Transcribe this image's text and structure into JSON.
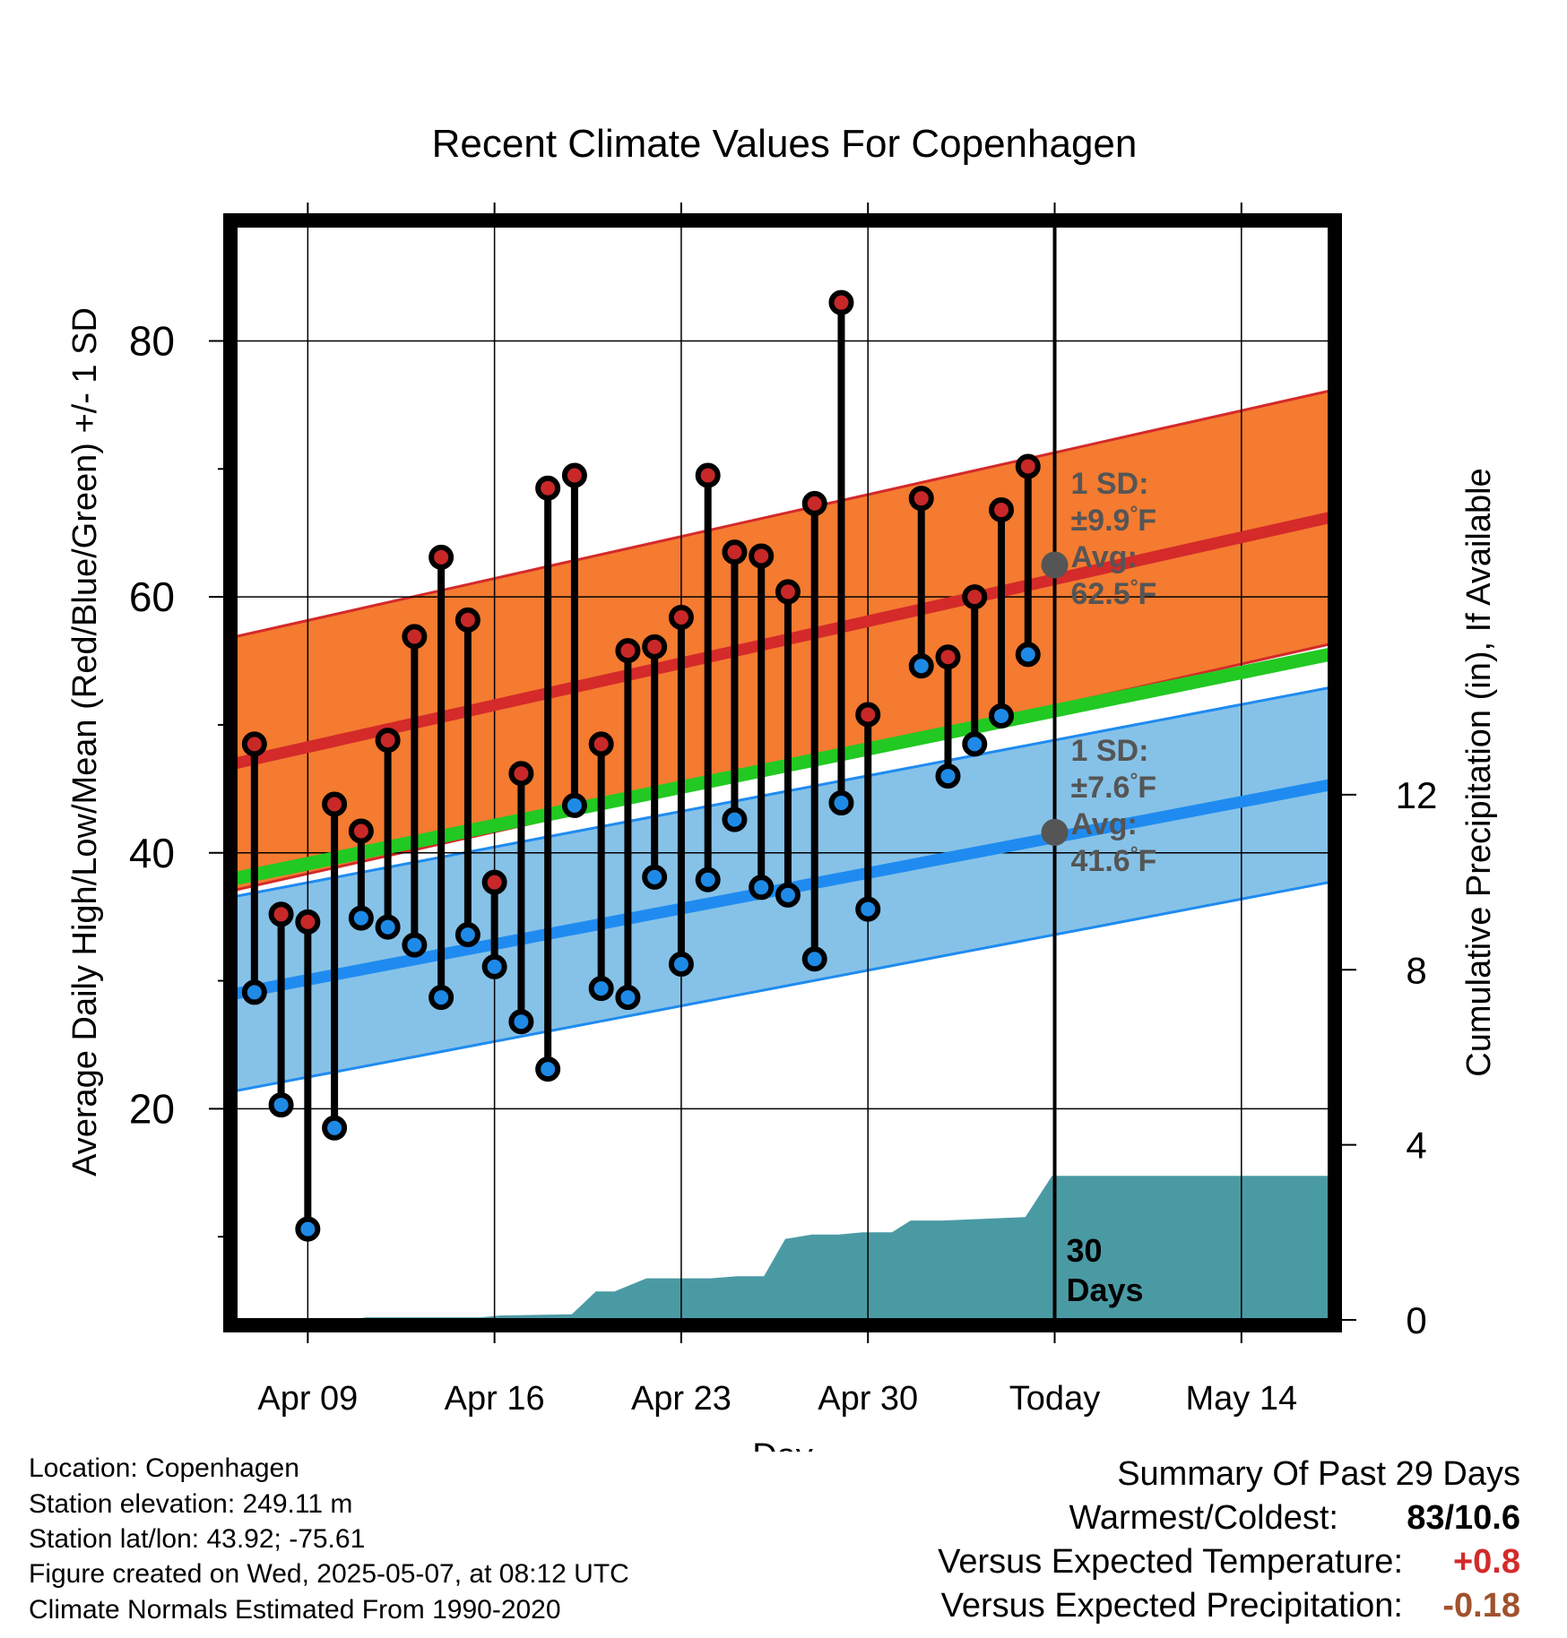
{
  "chart_data": {
    "type": "line",
    "title": "Recent Climate Values For Copenhagen",
    "xlabel": "Day",
    "ylabel_left": "Average Daily High/Low/Mean (Red/Blue/Green) +/- 1 SD",
    "ylabel_right": "Cumulative Precipitation (in), If Available",
    "x_tick_labels": [
      "Apr 09",
      "Apr 16",
      "Apr 23",
      "Apr 30",
      "Today",
      "May 14"
    ],
    "x_tick_days": [
      2,
      9,
      16,
      23,
      30,
      37
    ],
    "xlim_days": [
      -0.7,
      40.3
    ],
    "today_day": 30,
    "ylim_left": [
      3.5,
      89
    ],
    "yticks_left": [
      20,
      40,
      60,
      80
    ],
    "yminor_left": [
      10,
      30,
      50,
      70
    ],
    "ylim_right": [
      0,
      25
    ],
    "yticks_right": [
      0,
      4,
      8,
      12
    ],
    "x_days": [
      0,
      1,
      2,
      3,
      4,
      5,
      6,
      7,
      8,
      9,
      10,
      11,
      12,
      13,
      14,
      15,
      16,
      17,
      18,
      19,
      20,
      21,
      22,
      23,
      24,
      25,
      26,
      27,
      28,
      29
    ],
    "highs": [
      48.5,
      35.2,
      34.6,
      43.8,
      41.7,
      48.8,
      56.9,
      63.1,
      58.2,
      37.7,
      46.2,
      68.5,
      69.5,
      48.5,
      55.8,
      56.1,
      58.4,
      69.5,
      63.5,
      63.2,
      60.4,
      67.3,
      83.0,
      50.8,
      null,
      67.7,
      55.3,
      60.0,
      66.8,
      70.2
    ],
    "lows": [
      29.1,
      20.3,
      10.6,
      18.5,
      34.9,
      34.2,
      32.8,
      28.7,
      33.6,
      31.1,
      26.8,
      23.1,
      43.7,
      29.4,
      28.7,
      38.1,
      31.3,
      37.9,
      42.6,
      37.3,
      36.7,
      31.7,
      43.9,
      35.6,
      null,
      54.6,
      46.0,
      48.5,
      50.7,
      55.5
    ],
    "normal_high": {
      "x": [
        -0.7,
        40.3
      ],
      "values": [
        47.0,
        66.2
      ]
    },
    "normal_low": {
      "x": [
        -0.7,
        40.3
      ],
      "values": [
        29.0,
        45.3
      ]
    },
    "normal_mean": {
      "x": [
        -0.7,
        40.3
      ],
      "values": [
        38.0,
        55.5
      ]
    },
    "sd_high": 9.9,
    "sd_low": 7.6,
    "precip_cumulative": {
      "x": [
        -0.7,
        3.5,
        4.2,
        8.5,
        9.2,
        11.9,
        12.8,
        13.5,
        14.7,
        17.1,
        18.1,
        19.1,
        19.9,
        20.9,
        21.9,
        22.8,
        23.9,
        24.6,
        25.8,
        26.9,
        28.9,
        29.9,
        40.3
      ],
      "values": [
        0,
        0,
        0.06,
        0.06,
        0.1,
        0.13,
        0.65,
        0.65,
        0.95,
        0.95,
        1.0,
        1.0,
        1.85,
        1.95,
        1.95,
        2.0,
        2.0,
        2.27,
        2.27,
        2.3,
        2.35,
        3.29,
        3.29
      ]
    },
    "annotations": {
      "high_sd": [
        "1 SD:",
        "±9.9°F",
        "Avg:",
        "62.5°F"
      ],
      "low_sd": [
        "1 SD:",
        "±7.6°F",
        "Avg:",
        "41.6°F"
      ],
      "high_avg_value": 62.5,
      "low_avg_value": 41.6,
      "days_label": [
        "30",
        "Days"
      ]
    },
    "colors": {
      "high_band": "#f47b30",
      "high_line": "#d42a2a",
      "low_band": "#86c2e8",
      "low_line": "#1f8bf0",
      "mean_line": "#22c922",
      "precip": "#4a9aa4",
      "high_dot": "#c82828",
      "low_dot": "#1e8ae6",
      "annotation": "#555555"
    }
  },
  "info": {
    "location": "Location: Copenhagen",
    "elevation": "Station elevation: 249.11 m",
    "latlon": "Station lat/lon: 43.92; -75.61",
    "created": "Figure created on Wed, 2025-05-07, at 08:12 UTC",
    "normals": "Climate Normals Estimated From 1990-2020"
  },
  "summary": {
    "title": "Summary Of Past 29 Days",
    "warmest_label": "Warmest/Coldest:",
    "warmest_value": "83/10.6",
    "temp_label": "Versus Expected Temperature:",
    "temp_value": "+0.8",
    "precip_label": "Versus Expected Precipitation:",
    "precip_value": "-0.18",
    "temp_color": "#d42a2a",
    "precip_color": "#a0522d"
  }
}
